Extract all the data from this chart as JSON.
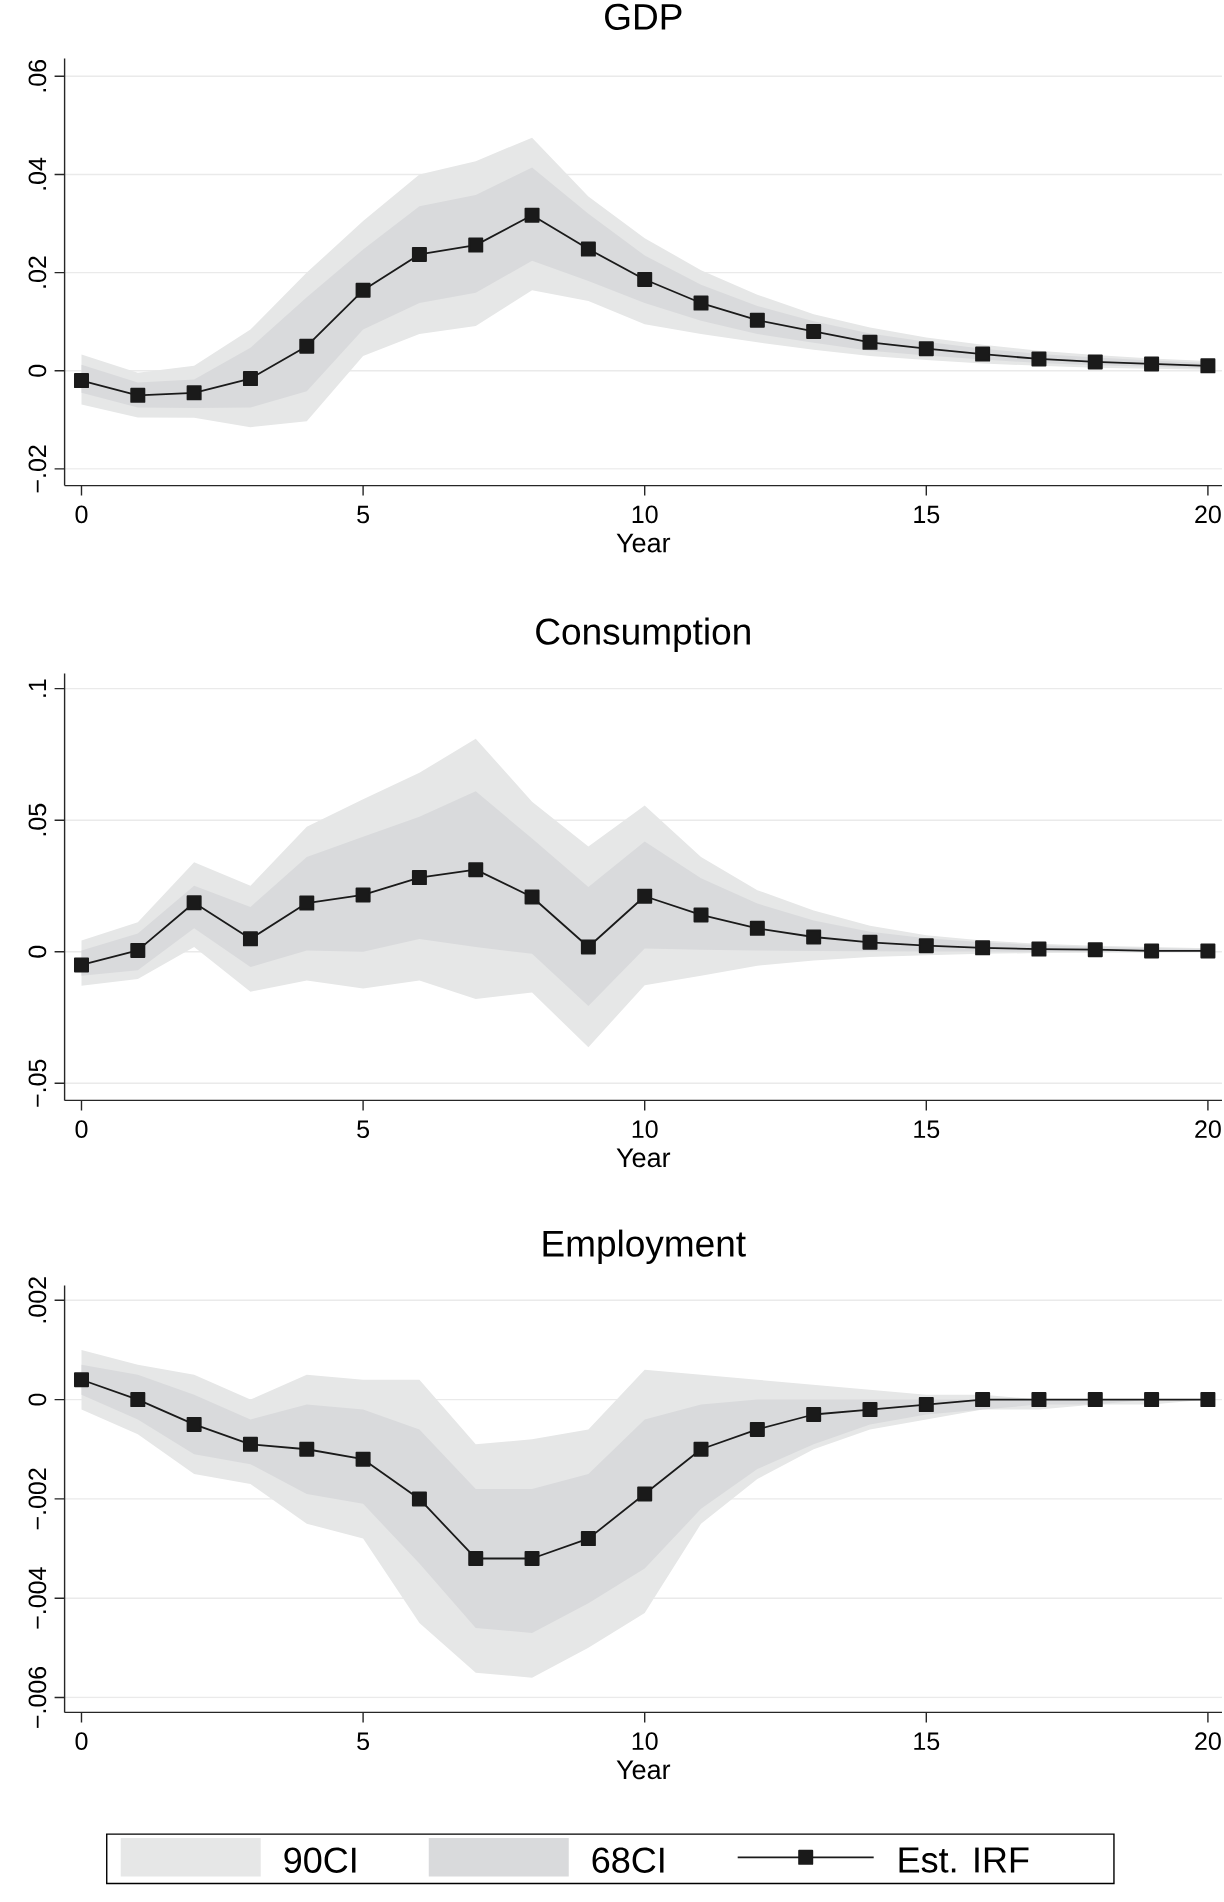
{
  "chart_data": [
    {
      "type": "line",
      "title": "GDP",
      "xlabel": "Year",
      "x": [
        0,
        1,
        2,
        3,
        4,
        5,
        6,
        7,
        8,
        9,
        10,
        11,
        12,
        13,
        14,
        15,
        16,
        17,
        18,
        19,
        20
      ],
      "xlim": [
        -0.3,
        20.25
      ],
      "xticks": [
        0,
        5,
        10,
        15,
        20
      ],
      "ylim": [
        -0.0234,
        0.0636
      ],
      "yticks": [
        {
          "value": -0.02,
          "label": "−.02"
        },
        0,
        {
          "value": 0.02,
          "label": ".02"
        },
        {
          "value": 0.04,
          "label": ".04"
        },
        {
          "value": 0.06,
          "label": ".06"
        }
      ],
      "grid": "y",
      "series": [
        {
          "type": "area",
          "color": "#e6e7e7",
          "values": [
            null,
            null,
            null,
            null,
            null,
            null,
            null,
            null,
            null,
            null,
            null,
            null,
            null,
            null,
            null,
            null,
            null,
            null,
            null,
            null,
            null
          ],
          "upper": [
            0.0033,
            -0.0004,
            0.001,
            0.0084,
            0.02,
            0.0305,
            0.04,
            0.0427,
            0.0475,
            0.0355,
            0.027,
            0.0205,
            0.0155,
            0.0115,
            0.0088,
            0.0068,
            0.0053,
            0.0041,
            0.0032,
            0.0025,
            0.002
          ],
          "lower": [
            -0.0069,
            -0.0095,
            -0.0096,
            -0.0115,
            -0.0103,
            0.003,
            0.0075,
            0.0091,
            0.0164,
            0.0142,
            0.0095,
            0.0075,
            0.0058,
            0.0043,
            0.003,
            0.0022,
            0.0015,
            0.001,
            0.0006,
            0.0004,
            0.0002
          ]
        },
        {
          "type": "area",
          "color": "#d9dadc",
          "values": [
            null,
            null,
            null,
            null,
            null,
            null,
            null,
            null,
            null,
            null,
            null,
            null,
            null,
            null,
            null,
            null,
            null,
            null,
            null,
            null,
            null
          ],
          "upper": [
            0.0012,
            -0.0024,
            -0.0018,
            0.0047,
            0.015,
            0.0247,
            0.0335,
            0.0358,
            0.0414,
            0.032,
            0.0235,
            0.0175,
            0.0132,
            0.0101,
            0.0076,
            0.0059,
            0.0045,
            0.0034,
            0.0027,
            0.0021,
            0.0016
          ],
          "lower": [
            -0.0045,
            -0.0075,
            -0.0076,
            -0.0075,
            -0.0042,
            0.0084,
            0.0138,
            0.0159,
            0.0224,
            0.0183,
            0.0138,
            0.0102,
            0.0075,
            0.0057,
            0.0041,
            0.0031,
            0.0023,
            0.0016,
            0.0011,
            0.0008,
            0.0005
          ]
        },
        {
          "type": "line",
          "color": "#1a1a1a",
          "marker": "square",
          "line_style": "solid",
          "values": [
            -0.002,
            -0.005,
            -0.0045,
            -0.0016,
            0.005,
            0.0164,
            0.0237,
            0.0256,
            0.0317,
            0.0248,
            0.0186,
            0.0138,
            0.0103,
            0.008,
            0.0058,
            0.0045,
            0.0034,
            0.0024,
            0.0018,
            0.0014,
            0.001
          ]
        }
      ]
    },
    {
      "type": "line",
      "title": "Consumption",
      "xlabel": "Year",
      "x": [
        0,
        1,
        2,
        3,
        4,
        5,
        6,
        7,
        8,
        9,
        10,
        11,
        12,
        13,
        14,
        15,
        16,
        17,
        18,
        19,
        20
      ],
      "xlim": [
        -0.3,
        20.25
      ],
      "xticks": [
        0,
        5,
        10,
        15,
        20
      ],
      "ylim": [
        -0.0565,
        0.1058
      ],
      "yticks": [
        {
          "value": -0.05,
          "label": "−.05"
        },
        0,
        {
          "value": 0.05,
          "label": ".05"
        },
        {
          "value": 0.1,
          "label": ".1"
        }
      ],
      "grid": "y",
      "series": [
        {
          "type": "area",
          "color": "#e6e7e7",
          "values": [
            null,
            null,
            null,
            null,
            null,
            null,
            null,
            null,
            null,
            null,
            null,
            null,
            null,
            null,
            null,
            null,
            null,
            null,
            null,
            null,
            null
          ],
          "upper": [
            0.0043,
            0.0112,
            0.034,
            0.0251,
            0.0475,
            0.058,
            0.068,
            0.081,
            0.057,
            0.04,
            0.0556,
            0.036,
            0.0234,
            0.0157,
            0.0099,
            0.0063,
            0.0043,
            0.003,
            0.0023,
            0.0018,
            0.0013
          ],
          "lower": [
            -0.0129,
            -0.0104,
            0.0018,
            -0.0152,
            -0.0109,
            -0.014,
            -0.0109,
            -0.018,
            -0.0155,
            -0.0363,
            -0.0127,
            -0.0091,
            -0.0053,
            -0.0033,
            -0.002,
            -0.0013,
            -0.0008,
            -0.0005,
            -0.0003,
            -0.0002,
            -0.0001
          ]
        },
        {
          "type": "area",
          "color": "#d9dadc",
          "values": [
            null,
            null,
            null,
            null,
            null,
            null,
            null,
            null,
            null,
            null,
            null,
            null,
            null,
            null,
            null,
            null,
            null,
            null,
            null,
            null,
            null
          ],
          "upper": [
            0.0005,
            0.0069,
            0.0251,
            0.017,
            0.036,
            0.0437,
            0.0513,
            0.061,
            0.043,
            0.0246,
            0.0419,
            0.0279,
            0.0183,
            0.0119,
            0.0076,
            0.0051,
            0.0036,
            0.0025,
            0.0018,
            0.0013,
            0.001
          ],
          "lower": [
            -0.0091,
            -0.007,
            0.0089,
            -0.0058,
            0.0005,
            0,
            0.0048,
            0.0018,
            -0.0008,
            -0.0206,
            0.0012,
            0.0008,
            0.0005,
            0.0003,
            0.0002,
            0.0001,
            0.0001,
            0,
            0,
            -0.0001,
            -0.0001
          ]
        },
        {
          "type": "line",
          "color": "#1a1a1a",
          "marker": "square",
          "line_style": "solid",
          "values": [
            -0.005,
            0.0005,
            0.0186,
            0.0049,
            0.0185,
            0.0216,
            0.0282,
            0.0312,
            0.0208,
            0.0018,
            0.0211,
            0.014,
            0.0089,
            0.0056,
            0.0036,
            0.0023,
            0.0015,
            0.001,
            0.0008,
            0.0003,
            0.0003
          ]
        }
      ]
    },
    {
      "type": "line",
      "title": "Employment",
      "xlabel": "Year",
      "x": [
        0,
        1,
        2,
        3,
        4,
        5,
        6,
        7,
        8,
        9,
        10,
        11,
        12,
        13,
        14,
        15,
        16,
        17,
        18,
        19,
        20
      ],
      "xlim": [
        -0.3,
        20.25
      ],
      "xticks": [
        0,
        5,
        10,
        15,
        20
      ],
      "ylim": [
        -0.0063,
        0.0023
      ],
      "yticks": [
        {
          "value": -0.006,
          "label": "−.006"
        },
        {
          "value": -0.004,
          "label": "−.004"
        },
        {
          "value": -0.002,
          "label": "−.002"
        },
        0,
        {
          "value": 0.002,
          "label": ".002"
        }
      ],
      "grid": "y",
      "legend": "bottom",
      "series": [
        {
          "name": "90CI",
          "type": "area",
          "color": "#e6e7e7",
          "values": [
            null,
            null,
            null,
            null,
            null,
            null,
            null,
            null,
            null,
            null,
            null,
            null,
            null,
            null,
            null,
            null,
            null,
            null,
            null,
            null,
            null
          ],
          "upper": [
            0.001,
            0.0007,
            0.0005,
            0,
            0.0005,
            0.0004,
            0.0004,
            -0.0009,
            -0.0008,
            -0.0006,
            0.0006,
            0.0005,
            0.0004,
            0.0003,
            0.0002,
            0.0001,
            0.0001,
            0,
            0,
            0,
            0
          ],
          "lower": [
            -0.0002,
            -0.0007,
            -0.0015,
            -0.0017,
            -0.0025,
            -0.0028,
            -0.0045,
            -0.0055,
            -0.0056,
            -0.005,
            -0.0043,
            -0.0025,
            -0.0016,
            -0.001,
            -0.0006,
            -0.0004,
            -0.0002,
            -0.0002,
            -0.0001,
            -0.0001,
            0
          ]
        },
        {
          "name": "68CI",
          "type": "area",
          "color": "#d9dadc",
          "values": [
            null,
            null,
            null,
            null,
            null,
            null,
            null,
            null,
            null,
            null,
            null,
            null,
            null,
            null,
            null,
            null,
            null,
            null,
            null,
            null,
            null
          ],
          "upper": [
            0.0007,
            0.0005,
            0.0001,
            -0.0004,
            -0.0001,
            -0.0002,
            -0.0006,
            -0.0018,
            -0.0018,
            -0.0015,
            -0.0004,
            -0.0001,
            0,
            0,
            0,
            0,
            0,
            0,
            0,
            0,
            0
          ],
          "lower": [
            0.0001,
            -0.0004,
            -0.0011,
            -0.0013,
            -0.0019,
            -0.0021,
            -0.0033,
            -0.0046,
            -0.0047,
            -0.0041,
            -0.0034,
            -0.0022,
            -0.0014,
            -0.0009,
            -0.0005,
            -0.0003,
            -0.0002,
            -0.0001,
            -0.0001,
            0,
            0
          ]
        },
        {
          "name": "Est. IRF",
          "type": "line",
          "color": "#1a1a1a",
          "marker": "square",
          "line_style": "solid",
          "values": [
            0.0004,
            0,
            -0.0005,
            -0.0009,
            -0.001,
            -0.0012,
            -0.002,
            -0.0032,
            -0.0032,
            -0.0028,
            -0.0019,
            -0.001,
            -0.0006,
            -0.0003,
            -0.0002,
            -0.0001,
            0,
            0,
            0,
            0,
            0
          ]
        }
      ]
    }
  ]
}
